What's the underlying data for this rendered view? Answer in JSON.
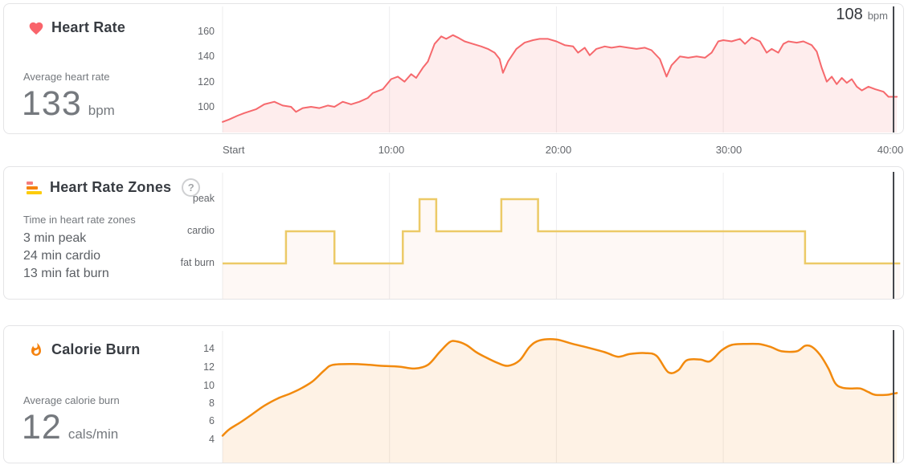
{
  "panels": {
    "heart_rate": {
      "title": "Heart Rate",
      "stat_label": "Average heart rate",
      "stat_value": "133",
      "stat_unit": "bpm",
      "cursor_value": "108",
      "cursor_unit": "bpm",
      "line_color": "#f6696d",
      "icon_color": "#f9646b"
    },
    "zones": {
      "title": "Heart Rate Zones",
      "help_label": "?",
      "stat_label": "Time in heart rate zones",
      "stat_lines": [
        "3 min peak",
        "24 min cardio",
        "13 min fat burn"
      ],
      "line_color": "#ecca67",
      "icon_colors": [
        "#f47d7d",
        "#f5820d",
        "#fdcc0a"
      ]
    },
    "calories": {
      "title": "Calorie Burn",
      "stat_label": "Average calorie burn",
      "stat_value": "12",
      "stat_unit": "cals/min",
      "line_color": "#f28a0e",
      "icon_color": "#f5820d"
    }
  },
  "x_axis": {
    "labels": [
      "Start",
      "10:00",
      "20:00",
      "30:00",
      "40:00"
    ],
    "minutes": [
      0,
      10,
      20,
      30,
      40
    ]
  },
  "cursor": {
    "minute": 40.2
  },
  "chart_data": [
    {
      "id": "heart_rate",
      "type": "line",
      "title": "Heart Rate",
      "ylabel": "bpm",
      "yticks": [
        "160",
        "140",
        "120",
        "100"
      ],
      "ytick_values": [
        160,
        140,
        120,
        100
      ],
      "ylim": [
        80,
        180
      ],
      "xlim_minutes": [
        0,
        40.6
      ],
      "cursor_value_bpm": 108,
      "x_minutes": [
        0,
        0.4,
        0.9,
        1.3,
        2.0,
        2.5,
        3.1,
        3.6,
        4.1,
        4.4,
        4.8,
        5.3,
        5.8,
        6.3,
        6.7,
        7.2,
        7.7,
        8.2,
        8.7,
        9.0,
        9.6,
        10.1,
        10.5,
        10.9,
        11.3,
        11.6,
        12.0,
        12.3,
        12.7,
        13.1,
        13.4,
        13.8,
        14.1,
        14.5,
        15.0,
        15.5,
        15.9,
        16.3,
        16.6,
        16.8,
        17.1,
        17.6,
        18.1,
        18.6,
        19.0,
        19.5,
        20.0,
        20.5,
        21.0,
        21.3,
        21.7,
        22.0,
        22.4,
        22.9,
        23.3,
        23.8,
        24.3,
        24.8,
        25.3,
        25.7,
        26.2,
        26.6,
        26.9,
        27.4,
        27.9,
        28.4,
        28.9,
        29.3,
        29.7,
        30.0,
        30.5,
        31.0,
        31.3,
        31.7,
        32.2,
        32.6,
        32.9,
        33.3,
        33.6,
        33.9,
        34.4,
        34.8,
        35.3,
        35.6,
        35.9,
        36.2,
        36.5,
        36.8,
        37.1,
        37.4,
        37.7,
        38.0,
        38.3,
        38.7,
        39.1,
        39.6,
        39.9,
        40.4
      ],
      "bpm": [
        88,
        90,
        93,
        95,
        98,
        102,
        104,
        101,
        100,
        96,
        99,
        100,
        99,
        101,
        100,
        104,
        102,
        104,
        107,
        111,
        114,
        122,
        124,
        120,
        126,
        123,
        131,
        136,
        150,
        156,
        154,
        157,
        155,
        152,
        150,
        148,
        146,
        143,
        138,
        127,
        136,
        146,
        151,
        153,
        154,
        154,
        152,
        149,
        148,
        143,
        147,
        141,
        146,
        148,
        147,
        148,
        147,
        146,
        147,
        145,
        138,
        124,
        133,
        140,
        139,
        140,
        139,
        143,
        152,
        153,
        152,
        154,
        150,
        155,
        152,
        143,
        146,
        143,
        150,
        152,
        151,
        152,
        149,
        144,
        131,
        120,
        124,
        118,
        123,
        119,
        122,
        116,
        113,
        116,
        114,
        112,
        108,
        108
      ]
    },
    {
      "id": "heart_rate_zones",
      "type": "step",
      "title": "Heart Rate Zones",
      "ylabels": [
        "peak",
        "cardio",
        "fat burn"
      ],
      "zone_minutes": {
        "peak": 3,
        "cardio": 24,
        "fat_burn": 13
      },
      "xlim_minutes": [
        0,
        40.6
      ],
      "segments": [
        {
          "zone": "fat burn",
          "from": 0,
          "to": 3.8
        },
        {
          "zone": "cardio",
          "from": 3.8,
          "to": 6.7
        },
        {
          "zone": "fat burn",
          "from": 6.7,
          "to": 10.8
        },
        {
          "zone": "cardio",
          "from": 10.8,
          "to": 11.8
        },
        {
          "zone": "peak",
          "from": 11.8,
          "to": 12.8
        },
        {
          "zone": "cardio",
          "from": 12.8,
          "to": 16.7
        },
        {
          "zone": "peak",
          "from": 16.7,
          "to": 18.9
        },
        {
          "zone": "cardio",
          "from": 18.9,
          "to": 34.9
        },
        {
          "zone": "fat burn",
          "from": 34.9,
          "to": 40.6
        }
      ]
    },
    {
      "id": "calorie_burn",
      "type": "area",
      "title": "Calorie Burn",
      "ylabel": "cals/min",
      "yticks": [
        "14",
        "12",
        "10",
        "8",
        "6",
        "4"
      ],
      "ytick_values": [
        14,
        12,
        10,
        8,
        6,
        4
      ],
      "ylim": [
        2.5,
        16
      ],
      "xlim_minutes": [
        0,
        40.6
      ],
      "x_minutes": [
        0,
        0.4,
        1.1,
        1.8,
        2.5,
        3.3,
        4.0,
        4.7,
        5.4,
        6.1,
        6.6,
        7.8,
        8.8,
        9.5,
        10.6,
        11.5,
        12.3,
        13.0,
        13.6,
        14.0,
        14.6,
        15.2,
        15.8,
        16.5,
        17.1,
        17.8,
        18.4,
        19.0,
        20.0,
        21.0,
        21.9,
        22.9,
        23.7,
        24.4,
        25.3,
        26.0,
        26.7,
        27.3,
        27.8,
        28.6,
        29.2,
        29.9,
        30.5,
        31.2,
        32.1,
        32.8,
        33.5,
        34.4,
        34.9,
        35.3,
        35.8,
        36.3,
        36.7,
        37.1,
        37.6,
        38.2,
        38.7,
        39.1,
        39.8,
        40.1,
        40.4
      ],
      "cals_per_min": [
        4.4,
        5.1,
        5.9,
        6.8,
        7.7,
        8.5,
        9.0,
        9.6,
        10.4,
        11.6,
        12.2,
        12.3,
        12.2,
        12.1,
        12.0,
        11.8,
        12.2,
        13.6,
        14.7,
        14.8,
        14.4,
        13.6,
        13.0,
        12.4,
        12.1,
        12.7,
        14.2,
        14.9,
        15.0,
        14.5,
        14.1,
        13.6,
        13.1,
        13.4,
        13.5,
        13.2,
        11.4,
        11.6,
        12.7,
        12.8,
        12.6,
        13.8,
        14.4,
        14.5,
        14.5,
        14.2,
        13.7,
        13.7,
        14.3,
        14.2,
        13.3,
        11.8,
        10.2,
        9.7,
        9.6,
        9.6,
        9.2,
        8.9,
        8.9,
        9.0,
        9.1
      ]
    }
  ]
}
